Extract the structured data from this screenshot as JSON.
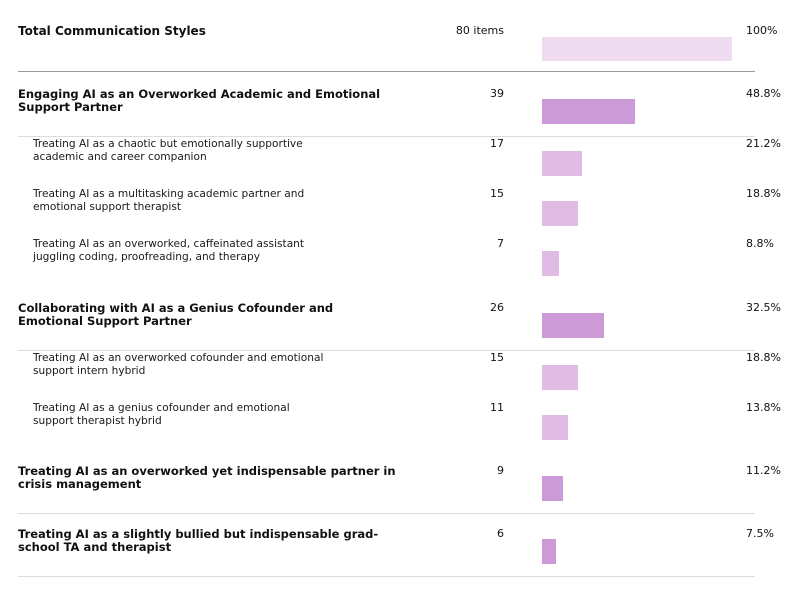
{
  "chart_data": {
    "type": "bar",
    "title": "Total Communication Styles",
    "total": {
      "label": "Total Communication Styles",
      "count": "80 items",
      "percent": "100%",
      "value": 100
    },
    "rows": [
      {
        "level": "group",
        "label": "Engaging AI as an Overworked Academic and Emotional Support Partner",
        "count": "39",
        "percent": "48.8%",
        "value": 48.8
      },
      {
        "level": "sub",
        "label": "Treating AI as a chaotic but emotionally supportive academic and career companion",
        "count": "17",
        "percent": "21.2%",
        "value": 21.2
      },
      {
        "level": "sub",
        "label": "Treating AI as a multitasking academic partner and emotional support therapist",
        "count": "15",
        "percent": "18.8%",
        "value": 18.8
      },
      {
        "level": "sub",
        "label": "Treating AI as an overworked, caffeinated assistant juggling coding, proofreading, and therapy",
        "count": "7",
        "percent": "8.8%",
        "value": 8.8
      },
      {
        "level": "group",
        "label": "Collaborating with AI as a Genius Cofounder and Emotional Support Partner",
        "count": "26",
        "percent": "32.5%",
        "value": 32.5
      },
      {
        "level": "sub",
        "label": "Treating AI as an overworked cofounder and emotional support intern hybrid",
        "count": "15",
        "percent": "18.8%",
        "value": 18.8
      },
      {
        "level": "sub",
        "label": "Treating AI as a genius cofounder and emotional support therapist hybrid",
        "count": "11",
        "percent": "13.8%",
        "value": 13.8
      },
      {
        "level": "group",
        "label": "Treating AI as an overworked yet indispensable partner in crisis management",
        "count": "9",
        "percent": "11.2%",
        "value": 11.2
      },
      {
        "level": "group",
        "label": "Treating AI as a slightly bullied but indispensable grad-school TA and therapist",
        "count": "6",
        "percent": "7.5%",
        "value": 7.5
      }
    ],
    "colors": {
      "total": "#efdcf0",
      "group": "#cd9ad8",
      "sub": "#e0bce4"
    }
  }
}
